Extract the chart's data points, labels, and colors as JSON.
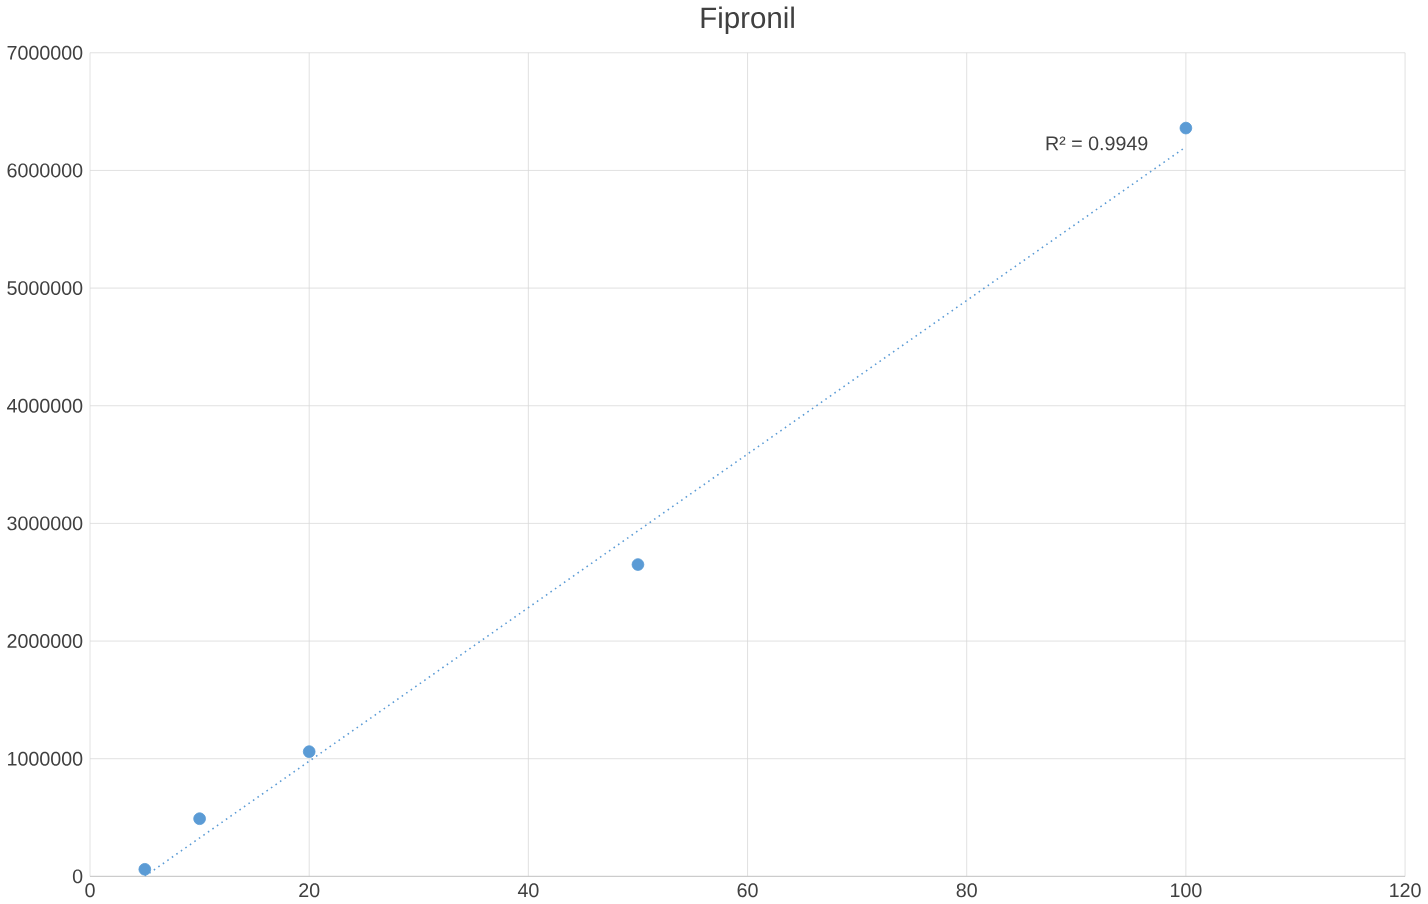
{
  "chart_data": {
    "type": "scatter",
    "title": "Fipronil",
    "series": [
      {
        "type": "scatter",
        "color": "#5b9bd5",
        "marker": "circle",
        "x": [
          5,
          10,
          20,
          50,
          100
        ],
        "values": [
          60000,
          490000,
          1060000,
          2650000,
          6360000
        ]
      },
      {
        "type": "line",
        "color": "#5b9bd5",
        "line_style": "dotted",
        "marker": "none",
        "x": [
          5,
          100
        ],
        "values": [
          0,
          6200000
        ]
      }
    ],
    "annotations": [
      "R² = 0.9949"
    ],
    "xlim": [
      0,
      120
    ],
    "xticks": [
      0,
      20,
      40,
      60,
      80,
      100,
      120
    ],
    "ylim": [
      0,
      7000000
    ],
    "yticks": [
      0,
      1000000,
      2000000,
      3000000,
      4000000,
      5000000,
      6000000,
      7000000
    ],
    "grid": true
  }
}
